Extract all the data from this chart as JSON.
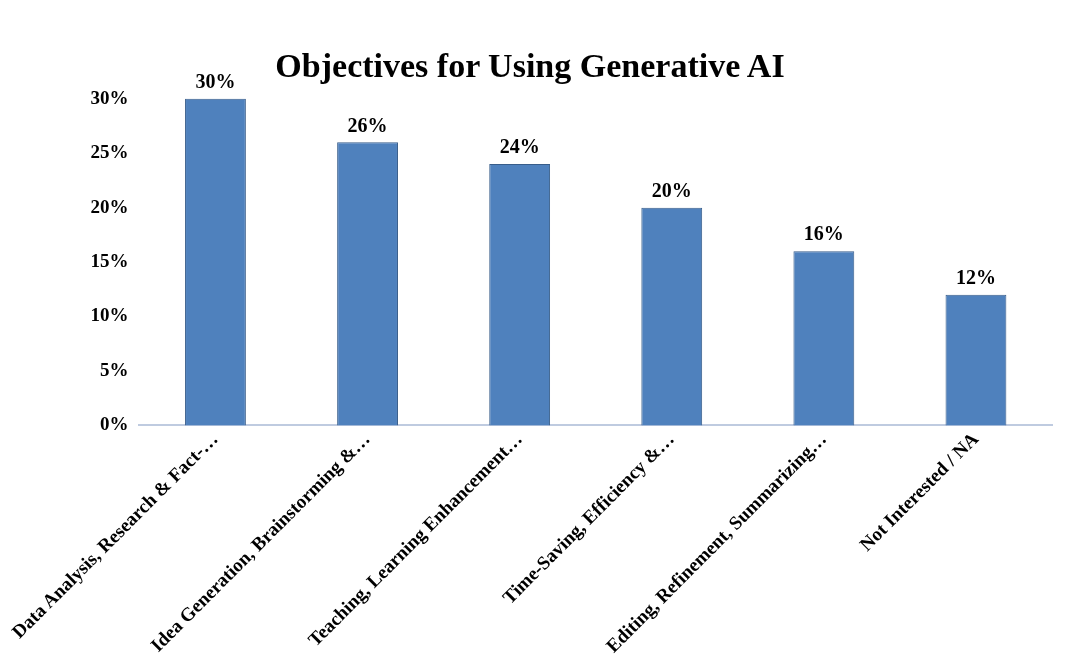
{
  "chart_data": {
    "type": "bar",
    "title": "Objectives for Using Generative AI",
    "categories": [
      "Data Analysis, Research & Fact-…",
      "Idea Generation, Brainstorming &…",
      "Teaching, Learning Enhancement…",
      "Time-Saving, Efficiency &…",
      "Editing, Refinement, Summarizing…",
      "Not Interested / NA"
    ],
    "values": [
      30,
      26,
      24,
      20,
      16,
      12
    ],
    "color": "#4f81bd",
    "value_labels": [
      "30%",
      "26%",
      "24%",
      "20%",
      "16%",
      "12%"
    ],
    "ylim": [
      0,
      30
    ],
    "yticks": [
      {
        "value": 0,
        "label": "0%"
      },
      {
        "value": 5,
        "label": "5%"
      },
      {
        "value": 10,
        "label": "10%"
      },
      {
        "value": 15,
        "label": "15%"
      },
      {
        "value": 20,
        "label": "20%"
      },
      {
        "value": 25,
        "label": "25%"
      },
      {
        "value": 30,
        "label": "30%"
      }
    ],
    "grid": false,
    "legend": false
  }
}
